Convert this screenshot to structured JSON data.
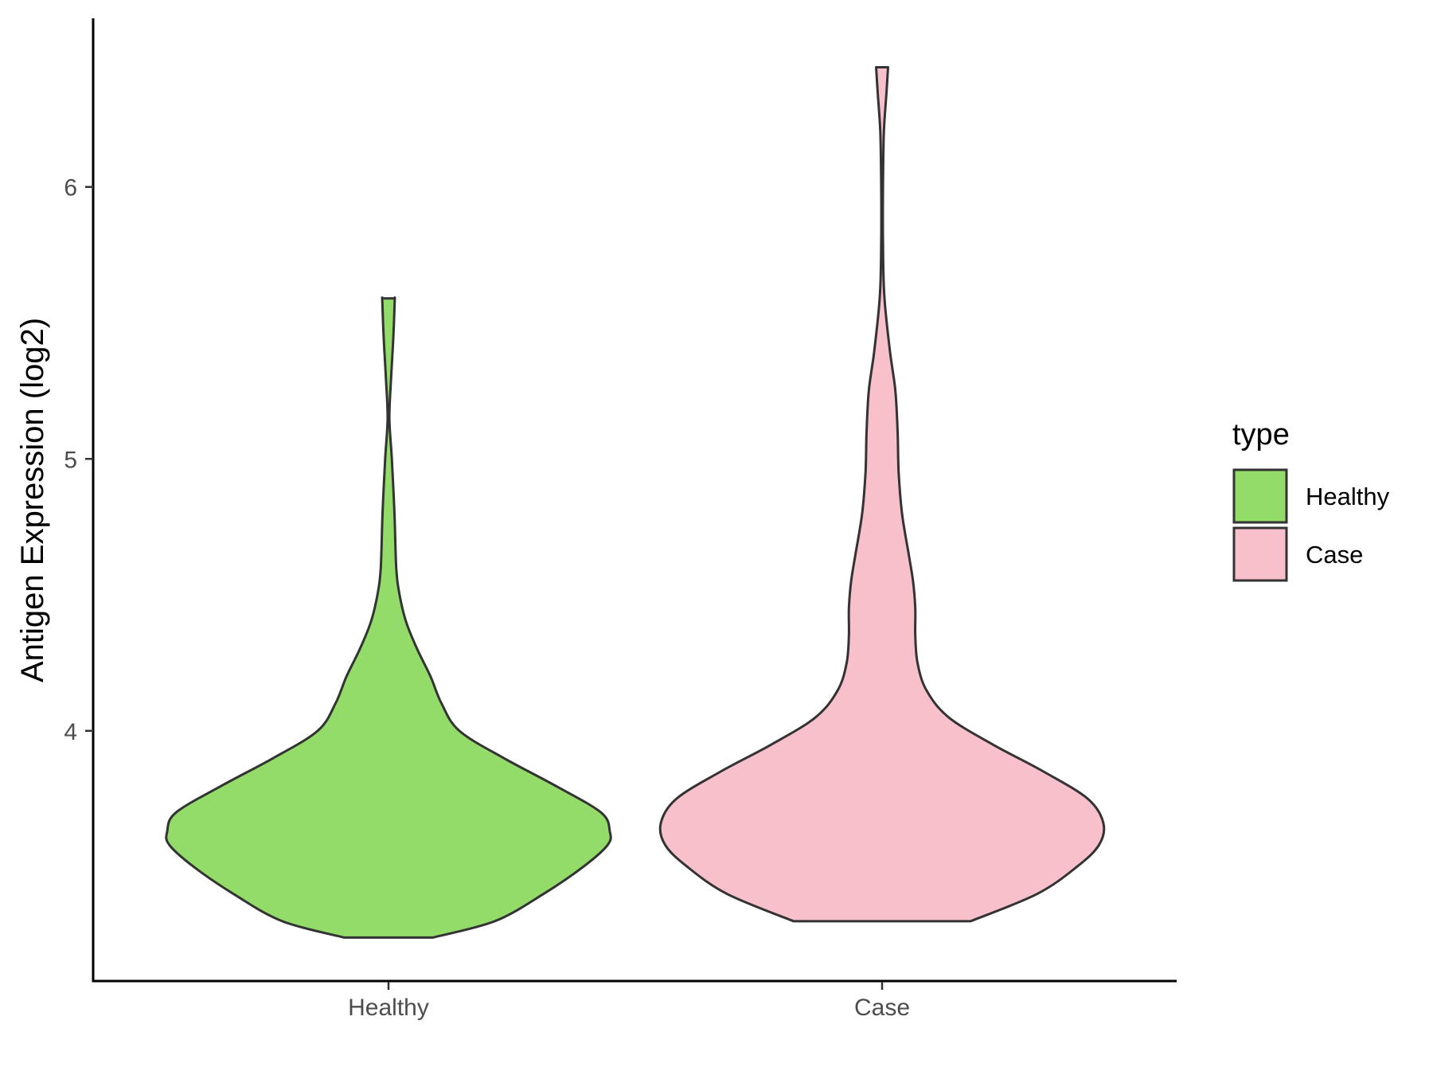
{
  "chart_data": {
    "type": "violin",
    "ylabel": "Antigen Expression (log2)",
    "xlabel": "",
    "categories": [
      "Healthy",
      "Case"
    ],
    "y_ticks": [
      4,
      5,
      6
    ],
    "ylim": [
      3.08,
      6.62
    ],
    "grid": false,
    "legend": {
      "title": "type",
      "position": "right",
      "entries": [
        {
          "label": "Healthy",
          "color": "#93DC6A"
        },
        {
          "label": "Case",
          "color": "#F8C0CB"
        }
      ]
    },
    "series": [
      {
        "category": "Healthy",
        "color": "#93DC6A",
        "density": [
          [
            3.24,
            0.2
          ],
          [
            3.3,
            0.48
          ],
          [
            3.4,
            0.7
          ],
          [
            3.5,
            0.88
          ],
          [
            3.58,
            0.99
          ],
          [
            3.63,
            1.0
          ],
          [
            3.7,
            0.96
          ],
          [
            3.8,
            0.75
          ],
          [
            3.9,
            0.52
          ],
          [
            4.0,
            0.32
          ],
          [
            4.1,
            0.24
          ],
          [
            4.2,
            0.19
          ],
          [
            4.3,
            0.13
          ],
          [
            4.4,
            0.08
          ],
          [
            4.5,
            0.05
          ],
          [
            4.6,
            0.035
          ],
          [
            4.8,
            0.027
          ],
          [
            5.0,
            0.015
          ],
          [
            5.15,
            0.004
          ],
          [
            5.3,
            0.012
          ],
          [
            5.45,
            0.022
          ],
          [
            5.58,
            0.028
          ],
          [
            5.59,
            0.028
          ]
        ]
      },
      {
        "category": "Case",
        "color": "#F8C0CB",
        "density": [
          [
            3.3,
            0.4
          ],
          [
            3.4,
            0.7
          ],
          [
            3.5,
            0.88
          ],
          [
            3.58,
            0.98
          ],
          [
            3.66,
            1.0
          ],
          [
            3.75,
            0.93
          ],
          [
            3.85,
            0.73
          ],
          [
            3.95,
            0.5
          ],
          [
            4.05,
            0.3
          ],
          [
            4.15,
            0.2
          ],
          [
            4.25,
            0.16
          ],
          [
            4.35,
            0.15
          ],
          [
            4.45,
            0.15
          ],
          [
            4.55,
            0.14
          ],
          [
            4.65,
            0.12
          ],
          [
            4.8,
            0.09
          ],
          [
            4.95,
            0.075
          ],
          [
            5.1,
            0.07
          ],
          [
            5.25,
            0.06
          ],
          [
            5.4,
            0.035
          ],
          [
            5.6,
            0.01
          ],
          [
            5.8,
            0.004
          ],
          [
            6.0,
            0.004
          ],
          [
            6.2,
            0.008
          ],
          [
            6.35,
            0.02
          ],
          [
            6.44,
            0.027
          ]
        ]
      }
    ]
  }
}
